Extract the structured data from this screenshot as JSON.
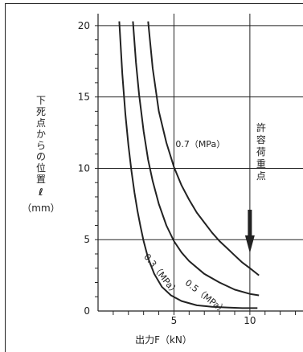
{
  "chart_data": {
    "type": "line",
    "xlabel": "出力F（kN）",
    "ylabel": {
      "chars": [
        "下",
        "死",
        "点",
        "か",
        "ら",
        "の",
        "位",
        "置"
      ],
      "symbol": "ℓ",
      "unit": "（mm）"
    },
    "x_ticks": [
      "5",
      "10"
    ],
    "y_ticks": [
      "0",
      "5",
      "10",
      "15",
      "20"
    ],
    "xlim": [
      0,
      13.5
    ],
    "ylim": [
      0,
      20.5
    ],
    "grid": "major lines at x=5, 10 and y=5, 10, 15, 20",
    "series": [
      {
        "name": "0.3（MPa）",
        "x": [
          1.4,
          1.6,
          1.8,
          2.0,
          2.2,
          2.4,
          2.6,
          2.8,
          3.0,
          3.3,
          3.7,
          4.2,
          4.8,
          5.5,
          6.5,
          7.5,
          8.5,
          9.5,
          10.5
        ],
        "y": [
          20.3,
          16.6,
          13.8,
          11.6,
          9.8,
          8.3,
          7.0,
          5.9,
          4.9,
          3.7,
          2.6,
          1.7,
          1.1,
          0.7,
          0.4,
          0.3,
          0.25,
          0.2,
          0.2
        ]
      },
      {
        "name": "0.5（MPa）",
        "x": [
          2.3,
          2.5,
          2.7,
          3.0,
          3.3,
          3.6,
          4.0,
          4.5,
          5.0,
          5.5,
          6.0,
          7.0,
          8.0,
          9.0,
          10.0,
          10.6
        ],
        "y": [
          20.3,
          17.4,
          15.2,
          12.6,
          10.6,
          9.1,
          7.5,
          6.0,
          4.9,
          4.1,
          3.5,
          2.6,
          2.0,
          1.5,
          1.2,
          1.1
        ]
      },
      {
        "name": "0.7（MPa）",
        "x": [
          3.3,
          3.6,
          4.0,
          4.5,
          5.0,
          5.5,
          6.0,
          6.5,
          7.0,
          7.5,
          8.0,
          8.5,
          9.0,
          9.5,
          10.0,
          10.6
        ],
        "y": [
          20.3,
          17.0,
          14.0,
          11.8,
          10.1,
          8.8,
          7.8,
          6.9,
          6.2,
          5.5,
          4.9,
          4.4,
          3.9,
          3.4,
          3.0,
          2.5
        ]
      }
    ],
    "annotations": [
      {
        "text": "許容荷重点",
        "vertical": true
      },
      {
        "text": "0.7（MPa）",
        "x": 5.1,
        "y": 11.5,
        "angle": 0
      },
      {
        "text": "0.5（MPa）",
        "x": 5.7,
        "y": 1.9,
        "angle": 38
      },
      {
        "text": "0.3（MPa）",
        "x": 3.0,
        "y": 3.8,
        "angle": 52
      }
    ],
    "allowable_load": {
      "x": 10,
      "y_from": 7.1,
      "y_to": 4.4
    },
    "colors": {
      "line": "#222222",
      "grid": "#222222",
      "background": "#ffffff"
    }
  }
}
